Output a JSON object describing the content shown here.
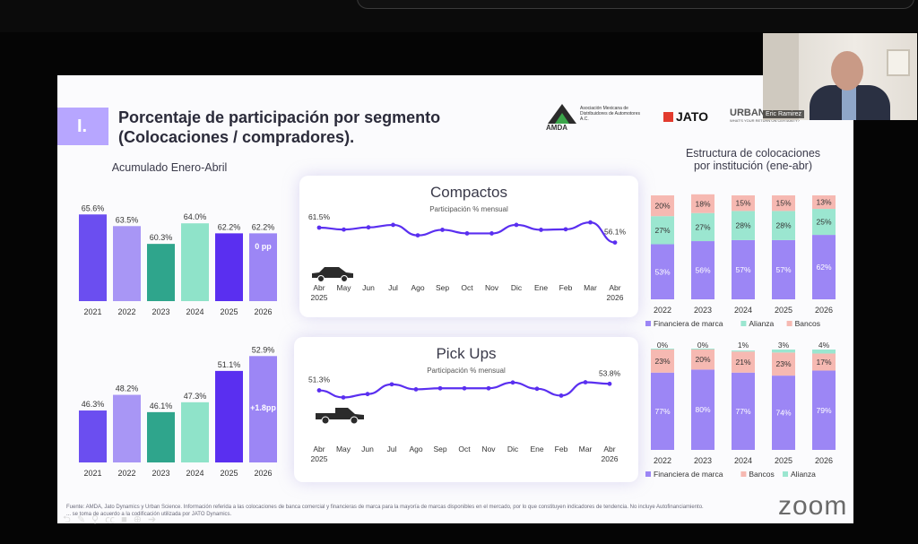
{
  "slide": {
    "number": "I.",
    "title_line1": "Porcentaje de participación por segmento",
    "title_line2": "(Colocaciones / compradores).",
    "left_subtitle": "Acumulado Enero-Abril",
    "right_subtitle_line1": "Estructura de colocaciones",
    "right_subtitle_line2": "por institución (ene-abr)",
    "footer_line1": "Fuente: AMDA, Jato Dynamics y Urban Science. Información referida a las colocaciones de banca comercial y financieras de marca para la mayoría de marcas disponibles en el mercado, por lo que constituyen indicadores de tendencia. No incluye Autofinanciamiento.",
    "footer_line2": "... se toma de acuerdo a la codificación utilizada por JATO Dynamics."
  },
  "logos": {
    "amda": "AMDA",
    "amda_sub1": "Asociación Mexicana de",
    "amda_sub2": "Distribuidores de Automotores A.C.",
    "jato": "JATO",
    "urban1": "URBAN SCIENCE",
    "urban2": "WHAT'S YOUR RETURN ON CERTAINTY?"
  },
  "video": {
    "participant_name": "Eric Ramirez",
    "watermark": "zoom"
  },
  "chart_data": [
    {
      "type": "bar",
      "categories": [
        "2021",
        "2022",
        "2023",
        "2024",
        "2025",
        "2026"
      ],
      "values": [
        65.6,
        63.5,
        60.3,
        64.0,
        62.2,
        62.2
      ],
      "labels": [
        "65.6%",
        "63.5%",
        "60.3%",
        "64.0%",
        "62.2%",
        "62.2%"
      ],
      "annotation": "0 pp",
      "colors": [
        "#6b4ef0",
        "#a896f5",
        "#2fa58c",
        "#8fe3c9",
        "#5a2ff0",
        "#9c86f5"
      ]
    },
    {
      "type": "bar",
      "categories": [
        "2021",
        "2022",
        "2023",
        "2024",
        "2025",
        "2026"
      ],
      "values": [
        46.3,
        48.2,
        46.1,
        47.3,
        51.1,
        52.9
      ],
      "labels": [
        "46.3%",
        "48.2%",
        "46.1%",
        "47.3%",
        "51.1%",
        "52.9%"
      ],
      "annotation": "+1.8pp",
      "colors": [
        "#6b4ef0",
        "#a896f5",
        "#2fa58c",
        "#8fe3c9",
        "#5a2ff0",
        "#9c86f5"
      ]
    },
    {
      "type": "line",
      "title": "Compactos",
      "subtitle": "Participación % mensual",
      "x": [
        "Abr|2025",
        "May",
        "Jun",
        "Jul",
        "Ago",
        "Sep",
        "Oct",
        "Nov",
        "Dic",
        "Ene",
        "Feb",
        "Mar",
        "Abr|2026"
      ],
      "values": [
        61.5,
        60.8,
        61.6,
        62.5,
        58.7,
        60.7,
        59.4,
        59.4,
        62.5,
        60.7,
        60.9,
        63.4,
        56.1
      ],
      "start_label": "61.5%",
      "end_label": "56.1%"
    },
    {
      "type": "line",
      "title": "Pick Ups",
      "subtitle": "Participación % mensual",
      "x": [
        "Abr|2025",
        "May",
        "Jun",
        "Jul",
        "Ago",
        "Sep",
        "Oct",
        "Nov",
        "Dic",
        "Ene",
        "Feb",
        "Mar",
        "Abr|2026"
      ],
      "values": [
        51.3,
        48.6,
        49.9,
        53.6,
        51.7,
        52.1,
        52.1,
        52.1,
        54.3,
        51.9,
        49.3,
        54.4,
        53.8
      ],
      "start_label": "51.3%",
      "end_label": "53.8%"
    },
    {
      "type": "bar",
      "stacked": true,
      "categories": [
        "2022",
        "2023",
        "2024",
        "2025",
        "2026"
      ],
      "series": [
        {
          "name": "Financiera de marca",
          "values": [
            53,
            56,
            57,
            57,
            62
          ],
          "color": "#9c86f5"
        },
        {
          "name": "Alianza",
          "values": [
            27,
            27,
            28,
            28,
            25
          ],
          "color": "#9be6d0"
        },
        {
          "name": "Bancos",
          "values": [
            20,
            18,
            15,
            15,
            13
          ],
          "color": "#f6b9b2"
        }
      ],
      "legend": [
        "Financiera de marca",
        "Alianza",
        "Bancos"
      ]
    },
    {
      "type": "bar",
      "stacked": true,
      "categories": [
        "2022",
        "2023",
        "2024",
        "2025",
        "2026"
      ],
      "series": [
        {
          "name": "Financiera de marca",
          "values": [
            77,
            80,
            77,
            74,
            79
          ],
          "color": "#9c86f5"
        },
        {
          "name": "Bancos",
          "values": [
            23,
            20,
            21,
            23,
            17
          ],
          "color": "#f6b9b2"
        },
        {
          "name": "Alianza",
          "values": [
            0,
            0,
            1,
            3,
            4
          ],
          "color": "#9be6d0"
        }
      ],
      "legend": [
        "Financiera de marca",
        "Bancos",
        "Alianza"
      ]
    }
  ]
}
